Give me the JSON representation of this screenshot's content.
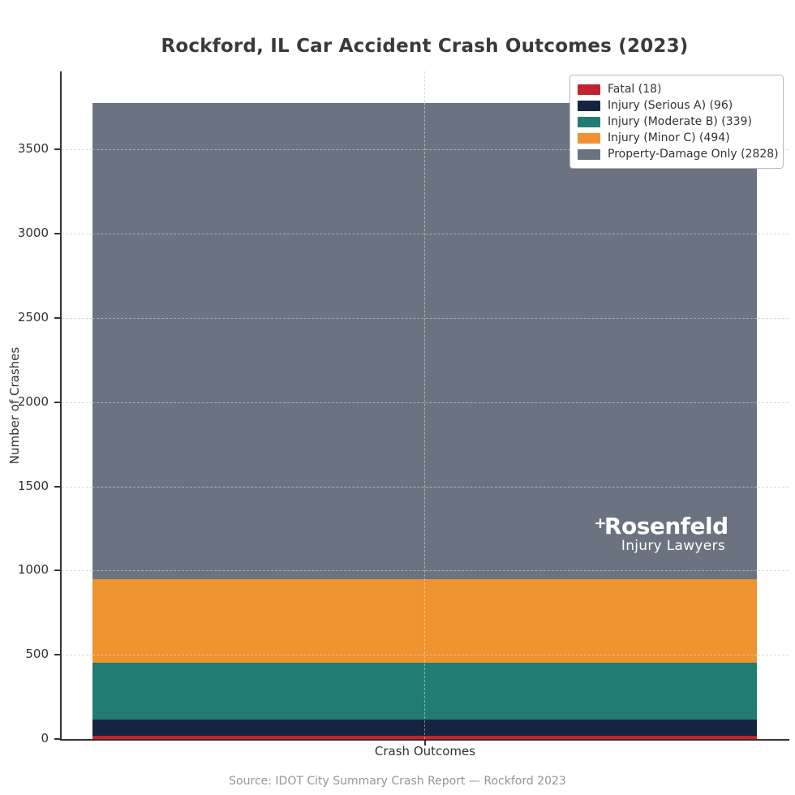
{
  "title": "Rockford, IL Car Accident Crash Outcomes (2023)",
  "xlabel": "Crash Outcomes",
  "ylabel": "Number of Crashes",
  "source": "Source: IDOT City Summary Crash Report — Rockford 2023",
  "watermark": {
    "plus": "+",
    "brand": "Rosenfeld",
    "tagline": "Injury Lawyers"
  },
  "chart_data": {
    "type": "bar",
    "stacked": true,
    "title": "Rockford, IL Car Accident Crash Outcomes (2023)",
    "xlabel": "Crash Outcomes",
    "ylabel": "Number of Crashes",
    "categories": [
      "Crash Outcomes"
    ],
    "series": [
      {
        "name": "Fatal",
        "legend_label": "Fatal (18)",
        "value": 18,
        "color": "#c2232e"
      },
      {
        "name": "Injury (Serious A)",
        "legend_label": "Injury (Serious A) (96)",
        "value": 96,
        "color": "#152440"
      },
      {
        "name": "Injury (Moderate B)",
        "legend_label": "Injury (Moderate B) (339)",
        "value": 339,
        "color": "#217c73"
      },
      {
        "name": "Injury (Minor C)",
        "legend_label": "Injury (Minor C) (494)",
        "value": 494,
        "color": "#ef9230"
      },
      {
        "name": "Property-Damage Only",
        "legend_label": "Property-Damage Only (2828)",
        "value": 2828,
        "color": "#6b7280"
      }
    ],
    "total": 3775,
    "ylim": [
      0,
      3964
    ],
    "yticks": [
      0,
      500,
      1000,
      1500,
      2000,
      2500,
      3000,
      3500
    ],
    "grid": "dashed",
    "grid_on": true,
    "legend_position": "upper right",
    "axis_text_color": "#333333",
    "source_text_color": "#969696",
    "background_color": "#ffffff"
  }
}
